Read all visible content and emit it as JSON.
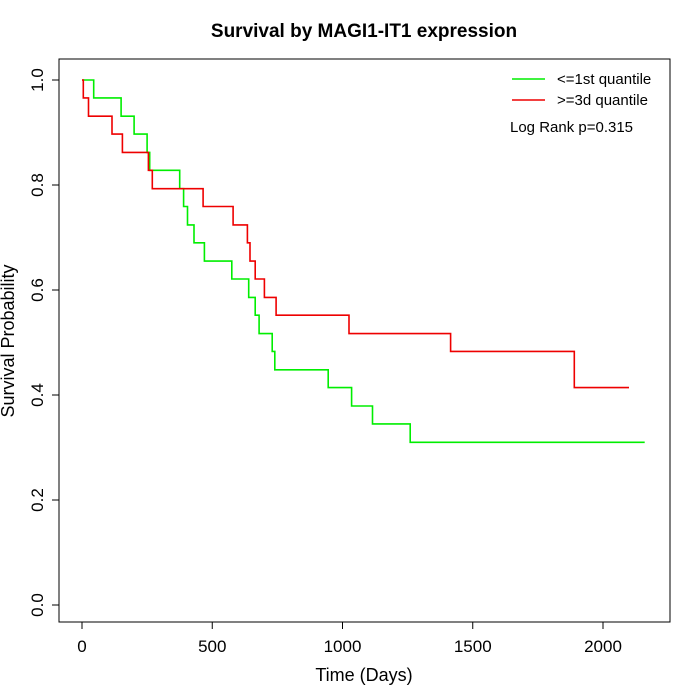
{
  "chart_data": {
    "type": "line",
    "title": "Survival by MAGI1-IT1 expression",
    "xlabel": "Time (Days)",
    "ylabel": "Survival Probability",
    "xlim": [
      0,
      2160
    ],
    "ylim": [
      0,
      1.0
    ],
    "x_ticks": [
      "0",
      "500",
      "1000",
      "1500",
      "2000"
    ],
    "y_ticks": [
      "0.0",
      "0.2",
      "0.4",
      "0.6",
      "0.8",
      "1.0"
    ],
    "x_tick_values": [
      0,
      500,
      1000,
      1500,
      2000
    ],
    "y_tick_values": [
      0,
      0.2,
      0.4,
      0.6,
      0.8,
      1.0
    ],
    "grid": false,
    "legend_position": "top-right",
    "annotation": "Log Rank p=0.315",
    "series": [
      {
        "name": "<=1st quantile",
        "color": "#00ee00",
        "points": [
          [
            0,
            1.0
          ],
          [
            45,
            1.0
          ],
          [
            45,
            0.966
          ],
          [
            150,
            0.966
          ],
          [
            150,
            0.931
          ],
          [
            200,
            0.931
          ],
          [
            200,
            0.897
          ],
          [
            250,
            0.897
          ],
          [
            250,
            0.862
          ],
          [
            260,
            0.862
          ],
          [
            260,
            0.828
          ],
          [
            375,
            0.828
          ],
          [
            375,
            0.793
          ],
          [
            390,
            0.793
          ],
          [
            390,
            0.759
          ],
          [
            405,
            0.759
          ],
          [
            405,
            0.724
          ],
          [
            430,
            0.724
          ],
          [
            430,
            0.69
          ],
          [
            470,
            0.69
          ],
          [
            470,
            0.655
          ],
          [
            575,
            0.655
          ],
          [
            575,
            0.621
          ],
          [
            640,
            0.621
          ],
          [
            640,
            0.586
          ],
          [
            665,
            0.586
          ],
          [
            665,
            0.552
          ],
          [
            680,
            0.552
          ],
          [
            680,
            0.517
          ],
          [
            730,
            0.517
          ],
          [
            730,
            0.483
          ],
          [
            740,
            0.483
          ],
          [
            740,
            0.448
          ],
          [
            945,
            0.448
          ],
          [
            945,
            0.414
          ],
          [
            1035,
            0.414
          ],
          [
            1035,
            0.379
          ],
          [
            1115,
            0.379
          ],
          [
            1115,
            0.345
          ],
          [
            1260,
            0.345
          ],
          [
            1260,
            0.31
          ],
          [
            2160,
            0.31
          ]
        ]
      },
      {
        "name": ">=3d quantile",
        "color": "#ee0000",
        "points": [
          [
            0,
            1.0
          ],
          [
            5,
            1.0
          ],
          [
            5,
            0.966
          ],
          [
            25,
            0.966
          ],
          [
            25,
            0.931
          ],
          [
            115,
            0.931
          ],
          [
            115,
            0.897
          ],
          [
            155,
            0.897
          ],
          [
            155,
            0.862
          ],
          [
            255,
            0.862
          ],
          [
            255,
            0.828
          ],
          [
            270,
            0.828
          ],
          [
            270,
            0.793
          ],
          [
            465,
            0.793
          ],
          [
            465,
            0.759
          ],
          [
            580,
            0.759
          ],
          [
            580,
            0.724
          ],
          [
            635,
            0.724
          ],
          [
            635,
            0.69
          ],
          [
            645,
            0.69
          ],
          [
            645,
            0.655
          ],
          [
            665,
            0.655
          ],
          [
            665,
            0.621
          ],
          [
            700,
            0.621
          ],
          [
            700,
            0.586
          ],
          [
            745,
            0.586
          ],
          [
            745,
            0.552
          ],
          [
            1025,
            0.552
          ],
          [
            1025,
            0.517
          ],
          [
            1415,
            0.517
          ],
          [
            1415,
            0.483
          ],
          [
            1890,
            0.483
          ],
          [
            1890,
            0.414
          ],
          [
            2100,
            0.414
          ]
        ]
      }
    ]
  }
}
